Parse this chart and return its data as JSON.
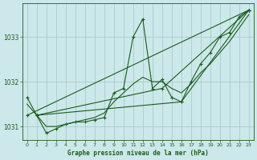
{
  "title": "Graphe pression niveau de la mer (hPa)",
  "background_color": "#cce8ea",
  "grid_color": "#aacccc",
  "line_color": "#1a5c1a",
  "xlim": [
    -0.5,
    23.5
  ],
  "ylim": [
    1030.7,
    1033.75
  ],
  "yticks": [
    1031,
    1032,
    1033
  ],
  "xticks": [
    0,
    1,
    2,
    3,
    4,
    5,
    6,
    7,
    8,
    9,
    10,
    11,
    12,
    13,
    14,
    15,
    16,
    17,
    18,
    19,
    20,
    21,
    22,
    23
  ],
  "series_main": {
    "x": [
      0,
      1,
      2,
      3,
      4,
      5,
      6,
      7,
      8,
      9,
      10,
      11,
      12,
      13,
      14,
      15,
      16,
      17,
      18,
      19,
      20,
      21,
      22,
      23
    ],
    "y": [
      1031.65,
      1031.25,
      1030.85,
      1030.95,
      1031.05,
      1031.1,
      1031.1,
      1031.15,
      1031.2,
      1031.75,
      1031.85,
      1033.0,
      1033.4,
      1031.85,
      1032.05,
      1031.65,
      1031.55,
      1032.0,
      1032.4,
      1032.65,
      1033.0,
      1033.1,
      1033.45,
      1033.6
    ]
  },
  "series_smooth": {
    "x": [
      0,
      1,
      2,
      3,
      4,
      5,
      6,
      7,
      8,
      9,
      10,
      11,
      12,
      13,
      14,
      15,
      16,
      17,
      18,
      19,
      20,
      21,
      22,
      23
    ],
    "y": [
      1031.5,
      1031.25,
      1031.0,
      1031.0,
      1031.05,
      1031.1,
      1031.15,
      1031.2,
      1031.3,
      1031.55,
      1031.75,
      1031.95,
      1032.1,
      1032.0,
      1032.0,
      1031.85,
      1031.75,
      1031.95,
      1032.2,
      1032.4,
      1032.65,
      1032.9,
      1033.2,
      1033.5
    ]
  },
  "series_trend1": {
    "x": [
      0,
      23
    ],
    "y": [
      1031.25,
      1033.6
    ]
  },
  "series_trend2": {
    "x": [
      1,
      14,
      23
    ],
    "y": [
      1031.25,
      1031.85,
      1033.6
    ]
  },
  "series_trend3": {
    "x": [
      1,
      16,
      23
    ],
    "y": [
      1031.25,
      1031.55,
      1033.6
    ]
  }
}
